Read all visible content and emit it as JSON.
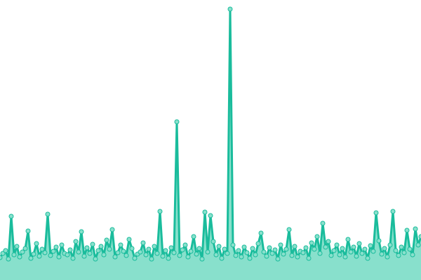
{
  "chart_data": {
    "type": "area",
    "title": "",
    "xlabel": "",
    "ylabel": "",
    "grid": false,
    "legend": "none",
    "ylim": [
      0,
      400
    ],
    "colors": {
      "line": "#1abc9c",
      "fill": "#88e0cc",
      "marker_fill": "#88e0cc",
      "marker_stroke": "#1abc9c"
    },
    "values": [
      32,
      38,
      42,
      30,
      91,
      36,
      48,
      33,
      40,
      45,
      70,
      31,
      37,
      52,
      34,
      44,
      39,
      94,
      35,
      41,
      47,
      33,
      50,
      38,
      36,
      43,
      31,
      55,
      40,
      69,
      34,
      46,
      38,
      51,
      30,
      42,
      48,
      36,
      57,
      44,
      72,
      33,
      39,
      50,
      41,
      35,
      58,
      45,
      31,
      37,
      40,
      53,
      36,
      44,
      30,
      48,
      38,
      98,
      34,
      42,
      31,
      46,
      39,
      226,
      35,
      43,
      50,
      33,
      41,
      62,
      37,
      45,
      30,
      97,
      40,
      92,
      55,
      36,
      48,
      31,
      44,
      38,
      387,
      50,
      35,
      42,
      33,
      47,
      39,
      31,
      45,
      36,
      52,
      67,
      40,
      34,
      46,
      38,
      43,
      30,
      50,
      37,
      44,
      72,
      35,
      48,
      33,
      41,
      39,
      46,
      31,
      53,
      44,
      62,
      38,
      81,
      47,
      55,
      35,
      42,
      50,
      36,
      45,
      33,
      58,
      40,
      47,
      34,
      52,
      38,
      44,
      31,
      49,
      41,
      96,
      56,
      37,
      45,
      33,
      50,
      98,
      42,
      35,
      47,
      39,
      71,
      44,
      36,
      73,
      50,
      62
    ]
  }
}
